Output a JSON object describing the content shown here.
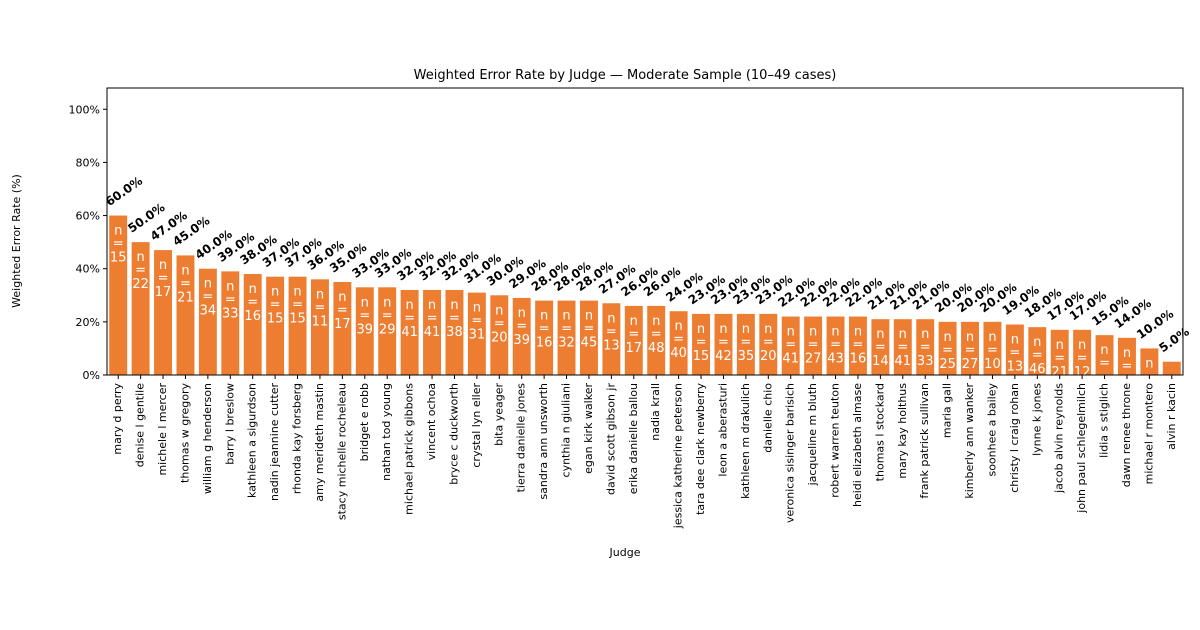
{
  "chart_data": {
    "type": "bar",
    "title": "Weighted Error Rate by Judge — Moderate Sample (10–49 cases)",
    "xlabel": "Judge",
    "ylabel": "Weighted Error Rate (%)",
    "ylim": [
      0,
      108
    ],
    "yticks": [
      0,
      20,
      40,
      60,
      80,
      100
    ],
    "ytick_labels": [
      "0%",
      "20%",
      "40%",
      "60%",
      "80%",
      "100%"
    ],
    "bar_color": "#ed7d31",
    "n_prefix": "n",
    "n_eq": "=",
    "categories": [
      "mary d perry",
      "denise l gentile",
      "michele l mercer",
      "thomas w gregory",
      "william g henderson",
      "barry l breslow",
      "kathleen a sigurdson",
      "nadin jeannine cutter",
      "rhonda kay forsberg",
      "amy merideth mastin",
      "stacy michelle rocheleau",
      "bridget e robb",
      "nathan tod young",
      "michael patrick gibbons",
      "vincent ochoa",
      "bryce c duckworth",
      "crystal lyn eller",
      "bita yeager",
      "tierra danielle jones",
      "sandra ann unsworth",
      "cynthia n giuliani",
      "egan kirk walker",
      "david scott gibson jr",
      "erika danielle ballou",
      "nadia krall",
      "jessica katherine peterson",
      "tara dee clark newberry",
      "leon a aberasturi",
      "kathleen m drakulich",
      "danielle chio",
      "veronica sisinger barisich",
      "jacqueline m bluth",
      "robert warren teuton",
      "heidi elizabeth almase",
      "thomas l stockard",
      "mary kay holthus",
      "frank patrick sullivan",
      "maria gall",
      "kimberly ann wanker",
      "soonhee a bailey",
      "christy l craig rohan",
      "lynne k jones",
      "jacob alvin reynolds",
      "john paul schlegelmilch",
      "lidia s stiglich",
      "dawn renee throne",
      "michael r montero",
      "alvin r kacin"
    ],
    "values": [
      60,
      50,
      47,
      45,
      40,
      39,
      38,
      37,
      37,
      36,
      35,
      33,
      33,
      32,
      32,
      32,
      31,
      30,
      29,
      28,
      28,
      28,
      27,
      26,
      26,
      24,
      23,
      23,
      23,
      23,
      22,
      22,
      22,
      22,
      21,
      21,
      21,
      20,
      20,
      20,
      19,
      18,
      17,
      17,
      15,
      14,
      10,
      5
    ],
    "value_labels": [
      "60.0%",
      "50.0%",
      "47.0%",
      "45.0%",
      "40.0%",
      "39.0%",
      "38.0%",
      "37.0%",
      "37.0%",
      "36.0%",
      "35.0%",
      "33.0%",
      "33.0%",
      "32.0%",
      "32.0%",
      "32.0%",
      "31.0%",
      "30.0%",
      "29.0%",
      "28.0%",
      "28.0%",
      "28.0%",
      "27.0%",
      "26.0%",
      "26.0%",
      "24.0%",
      "23.0%",
      "23.0%",
      "23.0%",
      "23.0%",
      "22.0%",
      "22.0%",
      "22.0%",
      "22.0%",
      "21.0%",
      "21.0%",
      "21.0%",
      "20.0%",
      "20.0%",
      "20.0%",
      "19.0%",
      "18.0%",
      "17.0%",
      "17.0%",
      "15.0%",
      "14.0%",
      "10.0%",
      "5.0%"
    ],
    "n": [
      "15",
      "22",
      "17",
      "21",
      "34",
      "33",
      "16",
      "15",
      "15",
      "11",
      "17",
      "39",
      "29",
      "41",
      "41",
      "38",
      "31",
      "20",
      "39",
      "16",
      "32",
      "45",
      "13",
      "17",
      "48",
      "40",
      "15",
      "42",
      "35",
      "20",
      "41",
      "27",
      "43",
      "16",
      "14",
      "41",
      "33",
      "25",
      "27",
      "10",
      "13",
      "46",
      "21",
      "12",
      "26",
      "22",
      "36",
      ""
    ],
    "grid": false,
    "legend": "none"
  }
}
